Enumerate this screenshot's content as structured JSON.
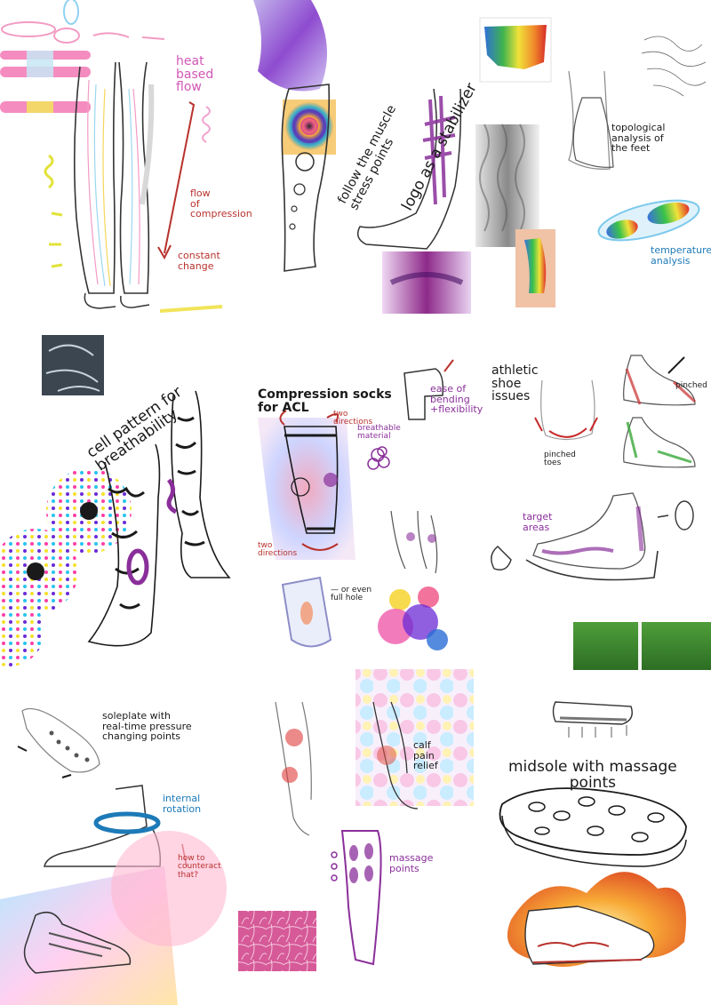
{
  "colors": {
    "pink": "#d257b6",
    "red": "#b8322d",
    "purple": "#8a2f9a",
    "blue": "#1d7ab8",
    "ink": "#1a1a1a",
    "grass": "#3e8f2f"
  },
  "notes": {
    "heat_based_flow": "heat\nbased\nflow",
    "flow_of_compression": "flow\nof\ncompression",
    "constant_change": "constant\nchange",
    "follow_muscle": "follow the muscle\nstress points",
    "logo_stabilizer": "logo as a stabilizer",
    "topological_analysis": "topological\nanalysis of\nthe feet",
    "temperature_analysis": "temperature\nanalysis",
    "cell_pattern": "cell pattern for\nbreathability",
    "compression_socks": "Compression socks\nfor ACL",
    "two_directions_top": "two\ndirections",
    "breathable_material": "breathable\nmaterial",
    "two_directions_bottom": "two\ndirections",
    "ease_of_bending": "ease of\nbending\n+flexibility",
    "or_even_full_hole": "— or even\nfull hole",
    "athletic_shoe_issues": "athletic\nshoe\nissues",
    "pinched_toes": "pinched\ntoes",
    "pinched": "pinched",
    "target_areas": "target\nareas",
    "soleplate": "soleplate with\nreal-time pressure\nchanging points",
    "internal_rotation": "internal\nrotation",
    "how_to_counteract": "how to\ncounteract\nthat?",
    "calf_pain_relief": "calf\npain\nrelief",
    "massage_points": "massage\npoints",
    "midsole": "midsole with massage\npoints"
  }
}
